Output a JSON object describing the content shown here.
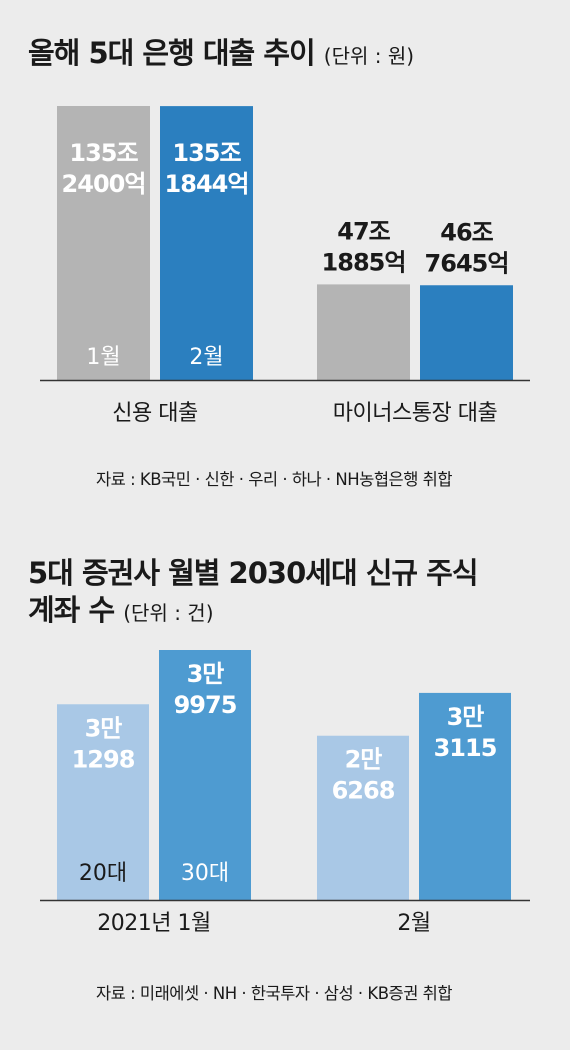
{
  "charts": [
    {
      "title": "올해 5대 은행 대출 추이",
      "unit": "(단위 : 원)",
      "source": "자료 : KB국민 · 신한 · 우리 · 하나 · NH농협은행 취합"
    },
    {
      "title_line1": "5대 증권사 월별 2030세대 신규 주식",
      "title_line2": "계좌 수",
      "unit": "(단위 : 건)",
      "source": "자료 : 미래에셋 · NH · 한국투자 · 삼성 · KB증권 취합"
    }
  ],
  "chart_data": [
    {
      "type": "bar",
      "title": "올해 5대 은행 대출 추이",
      "unit": "원",
      "categories": [
        "신용 대출",
        "마이너스통장 대출"
      ],
      "series": [
        {
          "name": "1월",
          "color": "#b4b4b4",
          "values": [
            1352400,
            471885
          ],
          "labels": [
            [
              "135조",
              "2400억"
            ],
            [
              "47조",
              "1885억"
            ]
          ]
        },
        {
          "name": "2월",
          "color": "#2b7fbf",
          "values": [
            1351844,
            467645
          ],
          "labels": [
            [
              "135조",
              "1844억"
            ],
            [
              "46조",
              "7645억"
            ]
          ]
        }
      ],
      "ylim": [
        0,
        1352400
      ],
      "legend": "inside-bars"
    },
    {
      "type": "bar",
      "title": "5대 증권사 월별 2030세대 신규 주식 계좌 수",
      "unit": "건",
      "categories": [
        "2021년 1월",
        "2월"
      ],
      "series": [
        {
          "name": "20대",
          "color": "#a9c8e6",
          "values": [
            31298,
            26268
          ],
          "labels": [
            [
              "3만",
              "1298"
            ],
            [
              "2만",
              "6268"
            ]
          ]
        },
        {
          "name": "30대",
          "color": "#4e9bd1",
          "values": [
            39975,
            33115
          ],
          "labels": [
            [
              "3만",
              "9975"
            ],
            [
              "3만",
              "3115"
            ]
          ]
        }
      ],
      "ylim": [
        0,
        39975
      ],
      "legend": "inside-bars"
    }
  ]
}
